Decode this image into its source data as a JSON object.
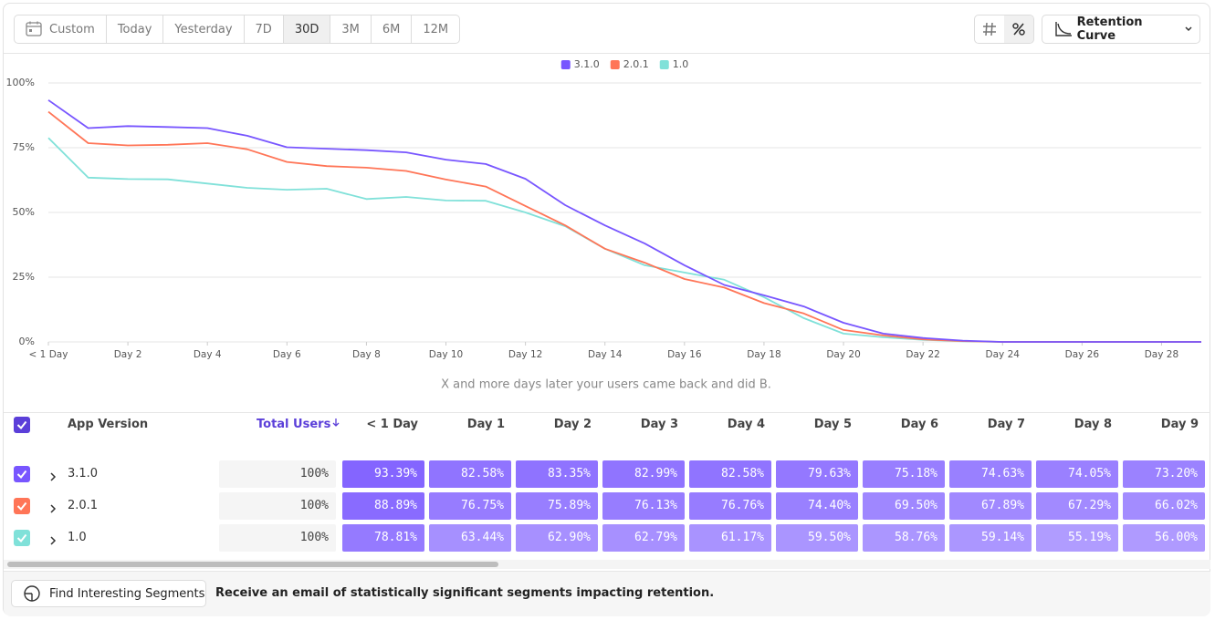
{
  "toolbar": {
    "ranges": [
      "Custom",
      "Today",
      "Yesterday",
      "7D",
      "30D",
      "3M",
      "6M",
      "12M"
    ],
    "selected": 4,
    "view": "Retention Curve"
  },
  "chart_data": {
    "type": "line",
    "x": [
      0,
      1,
      2,
      3,
      4,
      5,
      6,
      7,
      8,
      9,
      10,
      11,
      12,
      13,
      14,
      15,
      16,
      17,
      18,
      19,
      20,
      21,
      22,
      23,
      24,
      25,
      26,
      27,
      28,
      29
    ],
    "xlim": [
      0,
      29
    ],
    "xticks": [
      {
        "value": 0,
        "label": "< 1 Day"
      },
      {
        "value": 2,
        "label": "Day 2"
      },
      {
        "value": 4,
        "label": "Day 4"
      },
      {
        "value": 6,
        "label": "Day 6"
      },
      {
        "value": 8,
        "label": "Day 8"
      },
      {
        "value": 10,
        "label": "Day 10"
      },
      {
        "value": 12,
        "label": "Day 12"
      },
      {
        "value": 14,
        "label": "Day 14"
      },
      {
        "value": 16,
        "label": "Day 16"
      },
      {
        "value": 18,
        "label": "Day 18"
      },
      {
        "value": 20,
        "label": "Day 20"
      },
      {
        "value": 22,
        "label": "Day 22"
      },
      {
        "value": 24,
        "label": "Day 24"
      },
      {
        "value": 26,
        "label": "Day 26"
      },
      {
        "value": 28,
        "label": "Day 28"
      }
    ],
    "ylim": [
      0,
      100
    ],
    "yticks": [
      {
        "value": 0,
        "label": "0%"
      },
      {
        "value": 25,
        "label": "25%"
      },
      {
        "value": 50,
        "label": "50%"
      },
      {
        "value": 75,
        "label": "75%"
      },
      {
        "value": 100,
        "label": "100%"
      }
    ],
    "grid": true,
    "legend": "top",
    "series": [
      {
        "name": "3.1.0",
        "color": "#7856ff",
        "values": [
          93.39,
          82.58,
          83.35,
          82.99,
          82.58,
          79.63,
          75.18,
          74.63,
          74.05,
          73.2,
          70.4,
          68.7,
          63,
          52.8,
          45,
          38,
          29.6,
          22,
          18,
          13.7,
          7.4,
          3.2,
          1.5,
          0.5,
          0,
          0,
          0,
          0,
          0,
          0
        ]
      },
      {
        "name": "2.0.1",
        "color": "#ff7557",
        "values": [
          88.89,
          76.75,
          75.89,
          76.13,
          76.76,
          74.4,
          69.5,
          67.89,
          67.29,
          66.02,
          62.7,
          60,
          52.5,
          45,
          36,
          30.6,
          24.3,
          21,
          15,
          11,
          4.6,
          2.5,
          1,
          0.3,
          0,
          0,
          0,
          0,
          0,
          0
        ]
      },
      {
        "name": "1.0",
        "color": "#80e1d9",
        "values": [
          78.81,
          63.44,
          62.9,
          62.79,
          61.17,
          59.5,
          58.76,
          59.14,
          55.19,
          56,
          54.6,
          54.5,
          50,
          44.7,
          36,
          29.6,
          26.8,
          24,
          17.3,
          9.2,
          3.2,
          1.8,
          0.8,
          0.2,
          0,
          0,
          0,
          0,
          0,
          0
        ]
      }
    ],
    "caption": "X and more days later your users came back and did B."
  },
  "table": {
    "columns": [
      "App Version",
      "Total Users",
      "< 1 Day",
      "Day 1",
      "Day 2",
      "Day 3",
      "Day 4",
      "Day 5",
      "Day 6",
      "Day 7",
      "Day 8",
      "Day 9"
    ],
    "rows": [
      {
        "total": "100%",
        "cells": [
          "93.39%",
          "82.58%",
          "83.35%",
          "82.99%",
          "82.58%",
          "79.63%",
          "75.18%",
          "74.63%",
          "74.05%",
          "73.20%"
        ]
      },
      {
        "total": "100%",
        "cells": [
          "88.89%",
          "76.75%",
          "75.89%",
          "76.13%",
          "76.76%",
          "74.40%",
          "69.50%",
          "67.89%",
          "67.29%",
          "66.02%"
        ]
      },
      {
        "total": "100%",
        "cells": [
          "78.81%",
          "63.44%",
          "62.90%",
          "62.79%",
          "61.17%",
          "59.50%",
          "58.76%",
          "59.14%",
          "55.19%",
          "56.00%"
        ]
      }
    ]
  },
  "footer": {
    "button": "Find Interesting Segments",
    "message": "Receive an email of statistically significant segments impacting retention."
  }
}
